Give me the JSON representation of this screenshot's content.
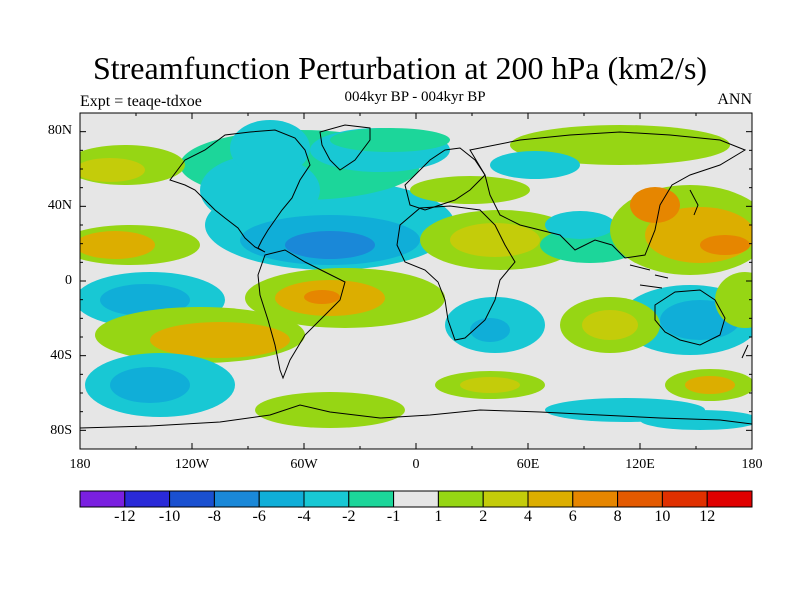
{
  "title": "Streamfunction Perturbation at 200 hPa (km2/s)",
  "subtitle": "004kyr BP - 004kyr BP",
  "left_label": "Expt = teaqe-tdxoe",
  "right_label": "ANN",
  "lat_labels": [
    "80N",
    "40N",
    "0",
    "40S",
    "80S"
  ],
  "lon_labels": [
    "180",
    "120W",
    "60W",
    "0",
    "60E",
    "120E",
    "180"
  ],
  "colorbar": {
    "labels": [
      "-12",
      "-10",
      "-8",
      "-6",
      "-4",
      "-2",
      "-1",
      "1",
      "2",
      "4",
      "6",
      "8",
      "10",
      "12"
    ],
    "colors": [
      "#7a20e0",
      "#2a2ad8",
      "#1a50d0",
      "#1a88d8",
      "#10aed8",
      "#18c8d4",
      "#1cd69a",
      "#e6e6e6",
      "#96d614",
      "#c4cc0a",
      "#dcae00",
      "#e68600",
      "#e45a00",
      "#e03000",
      "#e00000"
    ]
  },
  "map": {
    "lon_range": [
      -180,
      180
    ],
    "lat_range": [
      -90,
      90
    ],
    "background": "#e6e6e6"
  }
}
